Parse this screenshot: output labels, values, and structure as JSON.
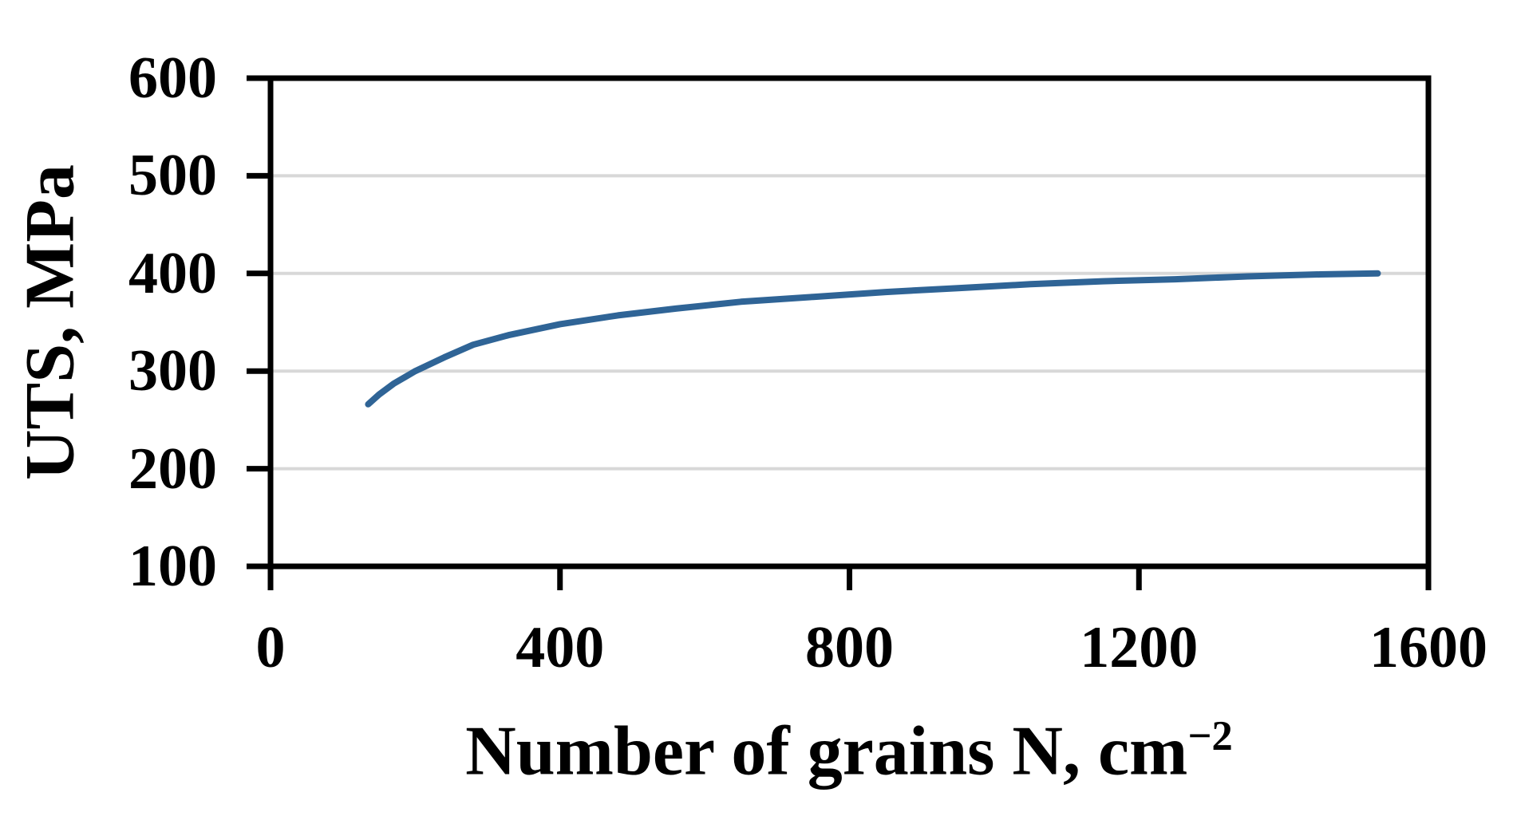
{
  "chart_data": {
    "type": "line",
    "title": "",
    "xlabel": "Number of grains N, cm⁻²",
    "xlabel_parts": {
      "main": "Number of grains N, cm",
      "sup": "−2"
    },
    "ylabel": "UTS, MPa",
    "xlim": [
      0,
      1600
    ],
    "ylim": [
      100,
      600
    ],
    "x_ticks": [
      0,
      400,
      800,
      1200,
      1600
    ],
    "y_ticks": [
      600,
      500,
      400,
      300,
      200,
      100
    ],
    "gridlines_y": [
      500,
      400,
      300,
      200
    ],
    "grid": "horizontal-only",
    "legend": "none",
    "background_color": "#ffffff",
    "axis_color": "#000000",
    "gridline_color": "#d8d8d8",
    "series": [
      {
        "name": "UTS vs N",
        "color": "#2f6496",
        "x": [
          135,
          150,
          170,
          200,
          240,
          280,
          330,
          400,
          480,
          560,
          650,
          750,
          850,
          950,
          1050,
          1150,
          1250,
          1350,
          1450,
          1530
        ],
        "y": [
          266,
          276,
          287,
          300,
          314,
          327,
          337,
          348,
          357,
          364,
          371,
          376,
          381,
          385,
          389,
          392,
          394,
          397,
          399,
          400
        ]
      }
    ]
  }
}
